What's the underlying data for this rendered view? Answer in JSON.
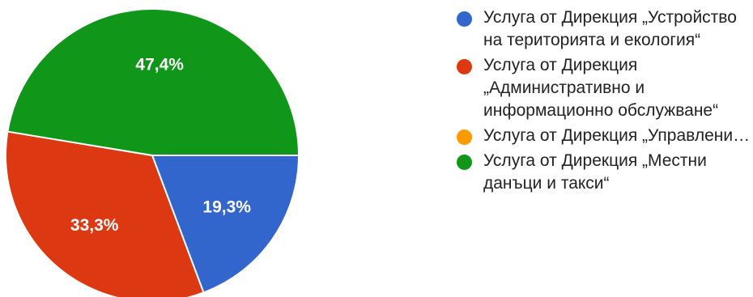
{
  "chart_data": {
    "type": "pie",
    "slices": [
      {
        "label": "Услуга от Дирекция „Устройство на територията и екология“",
        "value": 19.3,
        "display": "19,3%",
        "color": "#3366cc"
      },
      {
        "label": "Услуга от Дирекция „Административно и информационно обслужване“",
        "value": 33.3,
        "display": "33,3%",
        "color": "#dc3912"
      },
      {
        "label": "Услуга от Дирекция „Управление на общинска с…",
        "value": 0,
        "display": "",
        "color": "#ff9900"
      },
      {
        "label": "Услуга от Дирекция „Местни данъци и такси“",
        "value": 47.4,
        "display": "47,4%",
        "color": "#109618"
      }
    ],
    "legend_position": "right"
  }
}
